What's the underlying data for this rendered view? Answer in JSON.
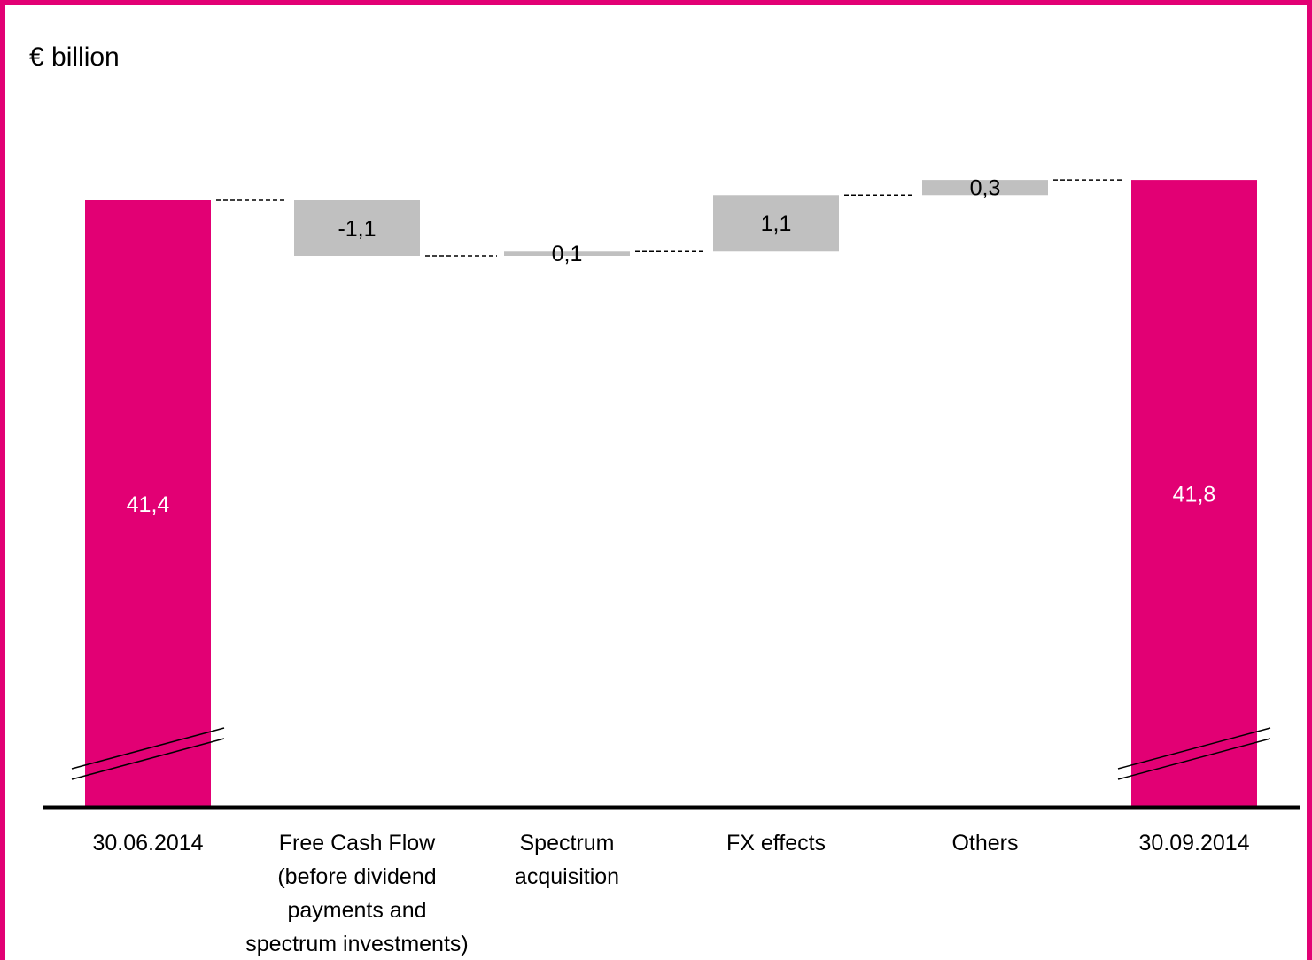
{
  "chart_data": {
    "type": "bar",
    "subtype": "waterfall",
    "unit_label": "€ billion",
    "categories": [
      [
        "30.06.2014"
      ],
      [
        "Free Cash Flow",
        "(before dividend",
        "payments and",
        "spectrum investments)"
      ],
      [
        "Spectrum",
        "acquisition"
      ],
      [
        "FX effects"
      ],
      [
        "Others"
      ],
      [
        "30.09.2014"
      ]
    ],
    "values": [
      41.4,
      -1.1,
      0.1,
      1.1,
      0.3,
      41.8
    ],
    "labels": [
      "41,4",
      "-1,1",
      "0,1",
      "1,1",
      "0,3",
      "41,8"
    ],
    "bar_kinds": [
      "total",
      "delta",
      "delta",
      "delta",
      "delta",
      "total"
    ],
    "axis_broken": true,
    "grid": false,
    "legend": "none",
    "colors": {
      "total": "#e20074",
      "delta": "#c0c0c0",
      "total_label": "#ffffff",
      "delta_label": "#000000",
      "frame": "#e20074",
      "axis": "#000000"
    }
  }
}
